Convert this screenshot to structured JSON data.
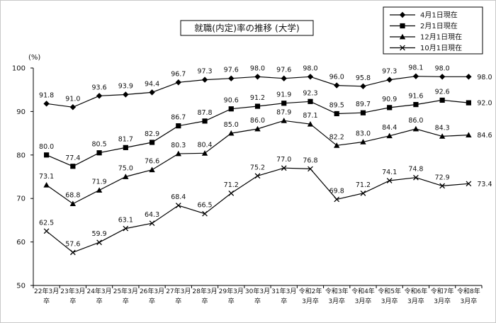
{
  "chart_data": {
    "type": "line",
    "title": "就職(内定)率の推移 (大学)",
    "ylabel": "(%)",
    "ylim": [
      50,
      100
    ],
    "yticks": [
      50,
      60,
      70,
      80,
      90,
      100
    ],
    "grid": false,
    "legend_position": "top-right",
    "categories": [
      [
        "22年3月",
        "卒"
      ],
      [
        "23年3月",
        "卒"
      ],
      [
        "24年3月",
        "卒"
      ],
      [
        "25年3月",
        "卒"
      ],
      [
        "26年3月",
        "卒"
      ],
      [
        "27年3月",
        "卒"
      ],
      [
        "28年3月",
        "卒"
      ],
      [
        "29年3月",
        "卒"
      ],
      [
        "30年3月",
        "卒"
      ],
      [
        "31年3月",
        "卒"
      ],
      [
        "令和2年",
        "3月卒"
      ],
      [
        "令和3年",
        "3月卒"
      ],
      [
        "令和4年",
        "3月卒"
      ],
      [
        "令和5年",
        "3月卒"
      ],
      [
        "令和6年",
        "3月卒"
      ],
      [
        "令和7年",
        "3月卒"
      ],
      [
        "令和8年",
        "3月卒"
      ]
    ],
    "series": [
      {
        "name": "4月1日現在",
        "marker": "diamond",
        "values": [
          91.8,
          91.0,
          93.6,
          93.9,
          94.4,
          96.7,
          97.3,
          97.6,
          98.0,
          97.6,
          98.0,
          96.0,
          95.8,
          97.3,
          98.1,
          98.0,
          98.0
        ]
      },
      {
        "name": "2月1日現在",
        "marker": "square",
        "values": [
          80.0,
          77.4,
          80.5,
          81.7,
          82.9,
          86.7,
          87.8,
          90.6,
          91.2,
          91.9,
          92.3,
          89.5,
          89.7,
          90.9,
          91.6,
          92.6,
          92.0
        ]
      },
      {
        "name": "12月1日現在",
        "marker": "triangle",
        "values": [
          73.1,
          68.8,
          71.9,
          75.0,
          76.6,
          80.3,
          80.4,
          85.0,
          86.0,
          87.9,
          87.1,
          82.2,
          83.0,
          84.4,
          86.0,
          84.3,
          84.6
        ]
      },
      {
        "name": "10月1日現在",
        "marker": "x",
        "values": [
          62.5,
          57.6,
          59.9,
          63.1,
          64.3,
          68.4,
          66.5,
          71.2,
          75.2,
          77.0,
          76.8,
          69.8,
          71.2,
          74.1,
          74.8,
          72.9,
          73.4
        ]
      }
    ],
    "colors": {
      "line": "#000000",
      "background": "#ffffff"
    }
  }
}
